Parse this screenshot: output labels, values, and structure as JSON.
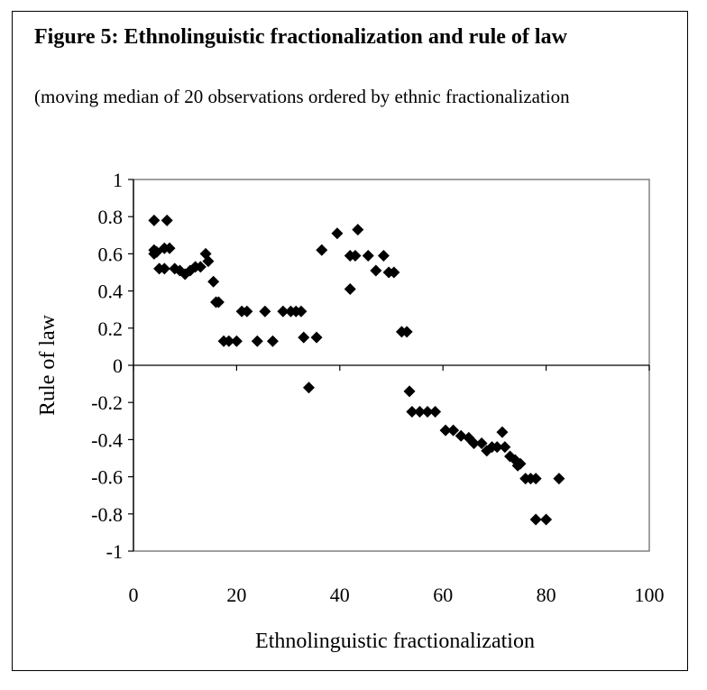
{
  "figure": {
    "title": "Figure 5:  Ethnolinguistic fractionalization and rule of law",
    "subtitle": "(moving median of 20 observations ordered by ethnic fractionalization"
  },
  "chart_data": {
    "type": "scatter",
    "xlabel": "Ethnolinguistic fractionalization",
    "ylabel": "Rule of law",
    "xlim": [
      0,
      100
    ],
    "ylim": [
      -1,
      1
    ],
    "xticks": [
      0,
      20,
      40,
      60,
      80,
      100
    ],
    "yticks": [
      1,
      0.8,
      0.6,
      0.4,
      0.2,
      0,
      -0.2,
      -0.4,
      -0.6,
      -0.8,
      -1
    ],
    "ytick_labels": [
      "1",
      "0.8",
      "0.6",
      "0.4",
      "0.2",
      "0",
      "-0.2",
      "-0.4",
      "-0.6",
      "-0.8",
      "-1"
    ],
    "grid": false,
    "marker": "diamond",
    "marker_color": "#000000",
    "points": [
      [
        4,
        0.78
      ],
      [
        6.5,
        0.78
      ],
      [
        4,
        0.62
      ],
      [
        4.5,
        0.61
      ],
      [
        4,
        0.6
      ],
      [
        6,
        0.63
      ],
      [
        7,
        0.63
      ],
      [
        5,
        0.52
      ],
      [
        6,
        0.52
      ],
      [
        8,
        0.52
      ],
      [
        9,
        0.51
      ],
      [
        10,
        0.49
      ],
      [
        11,
        0.51
      ],
      [
        12,
        0.53
      ],
      [
        13,
        0.53
      ],
      [
        14,
        0.6
      ],
      [
        14.5,
        0.56
      ],
      [
        15.5,
        0.45
      ],
      [
        16,
        0.34
      ],
      [
        16.5,
        0.34
      ],
      [
        17.5,
        0.13
      ],
      [
        18.5,
        0.13
      ],
      [
        20,
        0.13
      ],
      [
        21,
        0.29
      ],
      [
        22,
        0.29
      ],
      [
        24,
        0.13
      ],
      [
        25.5,
        0.29
      ],
      [
        27,
        0.13
      ],
      [
        29,
        0.29
      ],
      [
        30.5,
        0.29
      ],
      [
        31.5,
        0.29
      ],
      [
        32.5,
        0.29
      ],
      [
        33,
        0.15
      ],
      [
        34,
        -0.12
      ],
      [
        35.5,
        0.15
      ],
      [
        36.5,
        0.62
      ],
      [
        39.5,
        0.71
      ],
      [
        42,
        0.41
      ],
      [
        42,
        0.59
      ],
      [
        43,
        0.59
      ],
      [
        43.5,
        0.73
      ],
      [
        45.5,
        0.59
      ],
      [
        47,
        0.51
      ],
      [
        48.5,
        0.59
      ],
      [
        49.5,
        0.5
      ],
      [
        50.5,
        0.5
      ],
      [
        52,
        0.18
      ],
      [
        53,
        0.18
      ],
      [
        53.5,
        -0.14
      ],
      [
        54,
        -0.25
      ],
      [
        55.5,
        -0.25
      ],
      [
        57,
        -0.25
      ],
      [
        58.5,
        -0.25
      ],
      [
        60.5,
        -0.35
      ],
      [
        62,
        -0.35
      ],
      [
        63.5,
        -0.38
      ],
      [
        65,
        -0.39
      ],
      [
        66,
        -0.42
      ],
      [
        67.5,
        -0.42
      ],
      [
        68.5,
        -0.46
      ],
      [
        69.5,
        -0.44
      ],
      [
        70.5,
        -0.44
      ],
      [
        71.5,
        -0.36
      ],
      [
        72,
        -0.44
      ],
      [
        73,
        -0.49
      ],
      [
        74,
        -0.51
      ],
      [
        74.5,
        -0.54
      ],
      [
        75,
        -0.53
      ],
      [
        76,
        -0.61
      ],
      [
        77,
        -0.61
      ],
      [
        78,
        -0.61
      ],
      [
        78,
        -0.83
      ],
      [
        80,
        -0.83
      ],
      [
        82.5,
        -0.61
      ]
    ]
  }
}
